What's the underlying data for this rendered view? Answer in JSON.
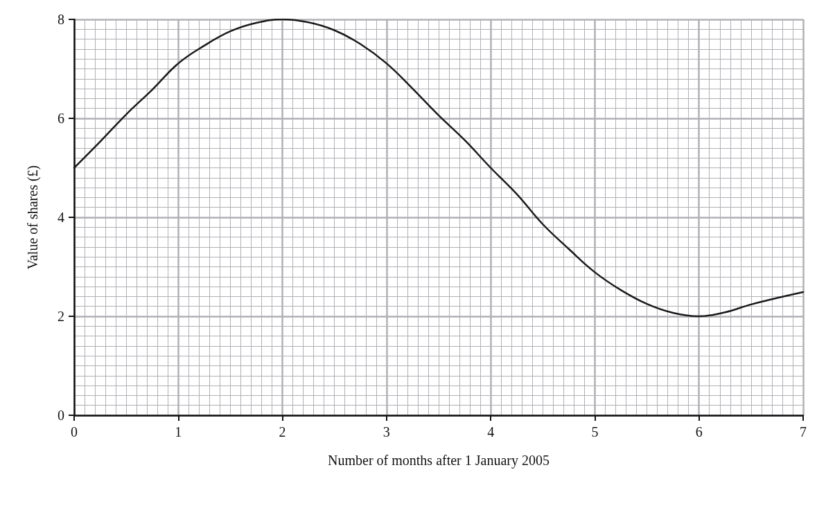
{
  "chart_data": {
    "type": "line",
    "xlabel": "Number of months after 1 January 2005",
    "ylabel": "Value of shares (£)",
    "x": [
      0,
      0.25,
      0.5,
      0.75,
      1,
      1.25,
      1.5,
      1.75,
      2,
      2.25,
      2.5,
      2.75,
      3,
      3.25,
      3.5,
      3.75,
      4,
      4.25,
      4.5,
      4.75,
      5,
      5.25,
      5.5,
      5.75,
      6,
      6.25,
      6.5,
      6.75,
      7
    ],
    "series": [
      {
        "color": "#1a1a1a",
        "values": [
          5.0,
          5.53,
          6.08,
          6.58,
          7.11,
          7.47,
          7.76,
          7.93,
          8.0,
          7.94,
          7.78,
          7.5,
          7.11,
          6.6,
          6.06,
          5.56,
          5.0,
          4.47,
          3.86,
          3.36,
          2.89,
          2.53,
          2.25,
          2.07,
          2.0,
          2.08,
          2.24,
          2.37,
          2.49
        ]
      }
    ],
    "xlim": [
      0,
      7
    ],
    "xticks": [
      0,
      1,
      2,
      3,
      4,
      5,
      6,
      7
    ],
    "ylim": [
      0,
      8
    ],
    "yticks": [
      0,
      2,
      4,
      6,
      8
    ],
    "grid": true,
    "marker": "none",
    "line_style": "solid"
  }
}
